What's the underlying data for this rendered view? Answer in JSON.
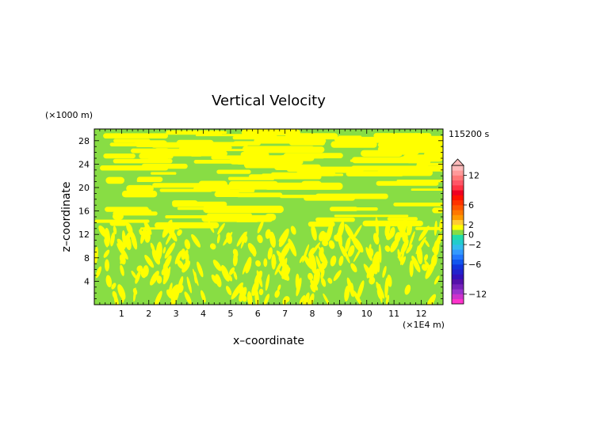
{
  "chart_data": {
    "type": "heatmap",
    "title": "Vertical Velocity",
    "xlabel": "x–coordinate",
    "ylabel": "z–coordinate",
    "x_unit": "(×1E4 m)",
    "y_unit": "(×1000 m)",
    "time_label": "115200 s",
    "xlim": [
      0,
      12.8
    ],
    "ylim": [
      0,
      30
    ],
    "x_ticks": [
      1,
      2,
      3,
      4,
      5,
      6,
      7,
      8,
      9,
      10,
      11,
      12
    ],
    "y_ticks": [
      4,
      8,
      12,
      16,
      20,
      24,
      28
    ],
    "colorbar": {
      "ticks": [
        12,
        6,
        2,
        0,
        -2,
        -6,
        -12
      ],
      "range": [
        -14,
        14
      ],
      "levels": [
        -14,
        -13,
        -12,
        -11,
        -10,
        -9,
        -8,
        -7,
        -6,
        -5,
        -4,
        -3,
        -2,
        -1,
        0,
        1,
        2,
        3,
        4,
        5,
        6,
        7,
        8,
        9,
        10,
        11,
        12,
        13,
        14
      ],
      "colors": [
        "#ff33cc",
        "#cc33cc",
        "#9933cc",
        "#7722bb",
        "#5511aa",
        "#3311bb",
        "#2222cc",
        "#1133dd",
        "#1155ee",
        "#2277ff",
        "#3399ff",
        "#33bbee",
        "#22cccc",
        "#22ddaa",
        "#88dd44",
        "#ffff00",
        "#ffcc33",
        "#ff9900",
        "#ff7700",
        "#ff5500",
        "#ff3300",
        "#ff1100",
        "#ee0022",
        "#ff3344",
        "#ff5566",
        "#ff7777",
        "#ff9999",
        "#ffbbbb"
      ],
      "extend": "max"
    },
    "field_values": [
      0,
      1
    ],
    "field_colors": [
      "#88dd44",
      "#ffff00"
    ]
  }
}
